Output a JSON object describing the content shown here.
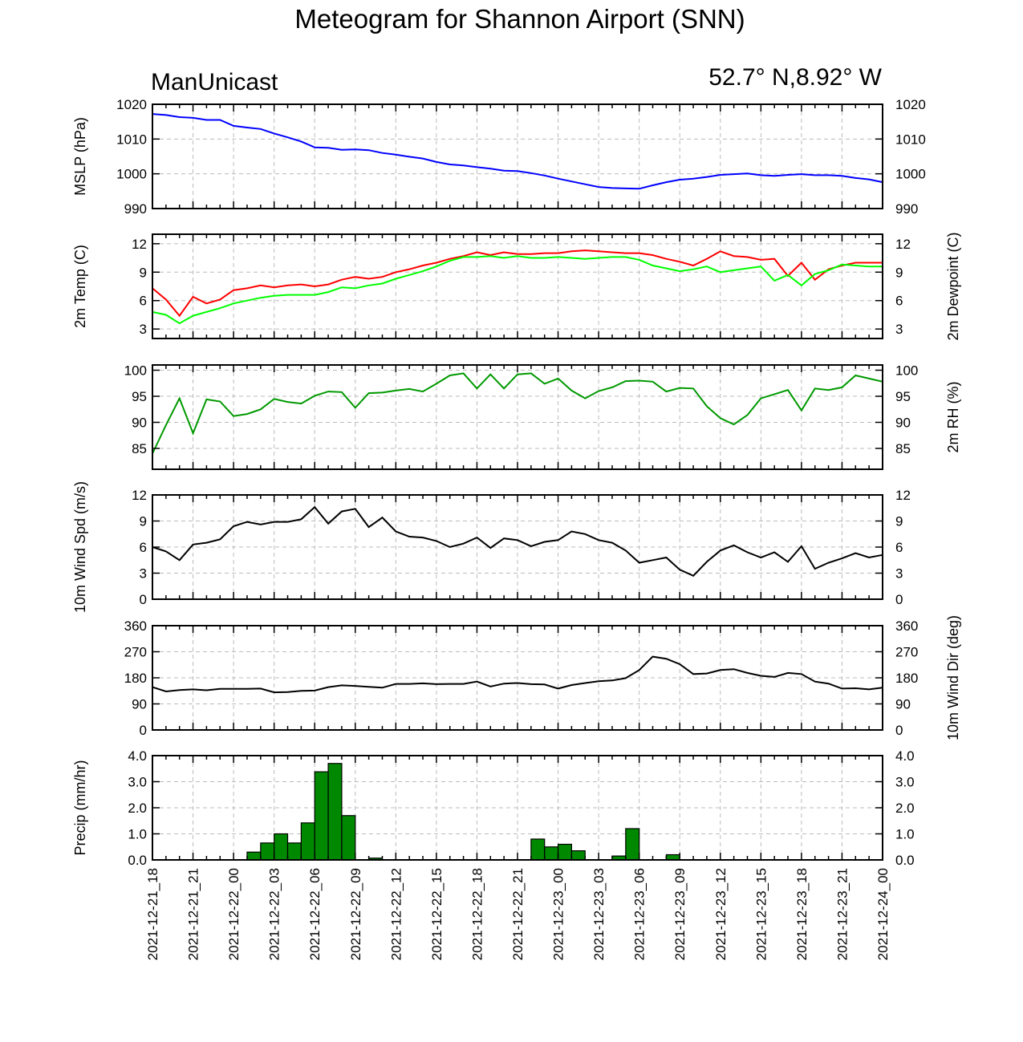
{
  "title": "Meteogram for Shannon Airport (SNN)",
  "subtitle_left": "ManUnicast",
  "subtitle_right": "52.7° N,8.92° W",
  "chart_data": [
    {
      "type": "line",
      "ylabel_left": "MSLP (hPa)",
      "ylabel_right": "",
      "ylim": [
        990,
        1020
      ],
      "yticks": [
        "990",
        "1000",
        "1010",
        "1020"
      ],
      "ytick_values": [
        990,
        1000,
        1010,
        1020
      ],
      "grid": true,
      "series": [
        {
          "color": "#0000ff",
          "values": [
            1017.2,
            1016.9,
            1016.3,
            1016.1,
            1015.5,
            1015.5,
            1013.8,
            1013.3,
            1012.9,
            1011.6,
            1010.5,
            1009.3,
            1007.6,
            1007.5,
            1006.9,
            1007.0,
            1006.8,
            1006.0,
            1005.5,
            1004.9,
            1004.4,
            1003.4,
            1002.7,
            1002.4,
            1001.9,
            1001.5,
            1000.9,
            1000.8,
            1000.2,
            999.5,
            998.6,
            997.8,
            997.0,
            996.2,
            995.9,
            995.8,
            995.7,
            996.7,
            997.6,
            998.3,
            998.6,
            999.1,
            999.7,
            999.9,
            1000.1,
            999.6,
            999.4,
            999.7,
            999.9,
            999.6,
            999.6,
            999.4,
            998.8,
            998.4,
            997.6
          ]
        }
      ]
    },
    {
      "type": "line",
      "ylabel_left": "2m Temp (C)",
      "ylabel_right": "2m Dewpoint (C)",
      "ylim": [
        2,
        13
      ],
      "yticks": [
        "3",
        "6",
        "9",
        "12"
      ],
      "ytick_values": [
        3,
        6,
        9,
        12
      ],
      "grid": true,
      "series": [
        {
          "color": "#ff0000",
          "values": [
            7.3,
            6.1,
            4.4,
            6.4,
            5.7,
            6.1,
            7.1,
            7.3,
            7.6,
            7.4,
            7.6,
            7.7,
            7.5,
            7.7,
            8.2,
            8.5,
            8.3,
            8.5,
            9.0,
            9.3,
            9.7,
            10.0,
            10.4,
            10.7,
            11.1,
            10.8,
            11.1,
            10.9,
            10.9,
            11.0,
            11.0,
            11.2,
            11.3,
            11.2,
            11.1,
            11.0,
            11.0,
            10.8,
            10.4,
            10.1,
            9.7,
            10.4,
            11.2,
            10.7,
            10.6,
            10.3,
            10.4,
            8.6,
            10.0,
            8.2,
            9.3,
            9.7,
            10.0,
            10.0,
            10.0
          ]
        },
        {
          "color": "#00ff00",
          "values": [
            4.8,
            4.5,
            3.6,
            4.4,
            4.8,
            5.2,
            5.7,
            6.0,
            6.3,
            6.5,
            6.6,
            6.6,
            6.6,
            6.9,
            7.4,
            7.3,
            7.6,
            7.8,
            8.3,
            8.7,
            9.1,
            9.6,
            10.2,
            10.6,
            10.6,
            10.7,
            10.5,
            10.7,
            10.5,
            10.5,
            10.6,
            10.5,
            10.4,
            10.5,
            10.6,
            10.6,
            10.3,
            9.7,
            9.4,
            9.1,
            9.3,
            9.6,
            9.0,
            9.2,
            9.4,
            9.6,
            8.1,
            8.7,
            7.6,
            8.8,
            9.2,
            9.8,
            9.7,
            9.6,
            9.6
          ]
        }
      ]
    },
    {
      "type": "line",
      "ylabel_left": "",
      "ylabel_right": "2m RH (%)",
      "ylim": [
        81,
        101
      ],
      "yticks": [
        "85",
        "90",
        "95",
        "100"
      ],
      "ytick_values": [
        85,
        90,
        95,
        100
      ],
      "grid": true,
      "series": [
        {
          "color": "#009900",
          "values": [
            84.0,
            89.5,
            94.6,
            87.9,
            94.4,
            94.0,
            91.2,
            91.6,
            92.5,
            94.5,
            93.9,
            93.6,
            95.1,
            95.9,
            95.8,
            92.8,
            95.6,
            95.7,
            96.1,
            96.4,
            95.9,
            97.4,
            99.0,
            99.4,
            96.5,
            99.2,
            96.5,
            99.2,
            99.4,
            97.4,
            98.4,
            96.1,
            94.6,
            96.0,
            96.7,
            97.9,
            98.0,
            97.8,
            95.9,
            96.6,
            96.5,
            93.1,
            90.8,
            89.6,
            91.4,
            94.6,
            95.4,
            96.2,
            92.3,
            96.5,
            96.2,
            96.7,
            99.0,
            98.4,
            97.8
          ]
        }
      ]
    },
    {
      "type": "line",
      "ylabel_left": "10m Wind Spd (m/s)",
      "ylabel_right": "",
      "ylim": [
        0,
        12
      ],
      "yticks": [
        "0",
        "3",
        "6",
        "9",
        "12"
      ],
      "ytick_values": [
        0,
        3,
        6,
        9,
        12
      ],
      "grid": true,
      "series": [
        {
          "color": "#000000",
          "values": [
            6.0,
            5.5,
            4.5,
            6.3,
            6.5,
            6.9,
            8.4,
            8.9,
            8.6,
            8.9,
            8.9,
            9.2,
            10.6,
            8.7,
            10.1,
            10.4,
            8.3,
            9.4,
            7.8,
            7.2,
            7.1,
            6.7,
            6.0,
            6.4,
            7.1,
            5.9,
            7.0,
            6.8,
            6.1,
            6.6,
            6.8,
            7.8,
            7.5,
            6.8,
            6.5,
            5.6,
            4.2,
            4.5,
            4.8,
            3.4,
            2.7,
            4.3,
            5.6,
            6.2,
            5.4,
            4.8,
            5.4,
            4.3,
            6.1,
            3.5,
            4.2,
            4.7,
            5.3,
            4.8,
            5.1
          ]
        }
      ]
    },
    {
      "type": "line",
      "ylabel_left": "",
      "ylabel_right": "10m Wind Dir (deg)",
      "ylim": [
        0,
        360
      ],
      "yticks": [
        "0",
        "90",
        "180",
        "270",
        "360"
      ],
      "ytick_values": [
        0,
        90,
        180,
        270,
        360
      ],
      "grid": true,
      "series": [
        {
          "color": "#000000",
          "values": [
            148,
            133,
            138,
            140,
            137,
            142,
            142,
            142,
            143,
            130,
            131,
            135,
            136,
            148,
            154,
            152,
            149,
            146,
            159,
            159,
            161,
            158,
            159,
            159,
            167,
            150,
            160,
            162,
            158,
            157,
            143,
            155,
            162,
            168,
            171,
            179,
            207,
            253,
            246,
            227,
            193,
            195,
            207,
            210,
            197,
            187,
            183,
            197,
            193,
            167,
            160,
            143,
            144,
            140,
            146
          ]
        }
      ]
    },
    {
      "type": "bar",
      "ylabel_left": "Precip (mm/hr)",
      "ylabel_right": "",
      "ylim": [
        0,
        4
      ],
      "yticks": [
        "0.0",
        "1.0",
        "2.0",
        "3.0",
        "4.0"
      ],
      "ytick_values": [
        0,
        1,
        2,
        3,
        4
      ],
      "grid": true,
      "color": "#008800",
      "values": [
        0,
        0,
        0,
        0,
        0,
        0,
        0,
        0.3,
        0.65,
        1.0,
        0.65,
        1.42,
        3.38,
        3.7,
        1.7,
        0,
        0.07,
        0,
        0,
        0,
        0,
        0,
        0,
        0,
        0,
        0,
        0,
        0,
        0.8,
        0.5,
        0.6,
        0.35,
        0,
        0,
        0.15,
        1.2,
        0,
        0,
        0.2,
        0,
        0,
        0,
        0,
        0,
        0,
        0,
        0,
        0,
        0,
        0,
        0,
        0,
        0,
        0
      ]
    }
  ],
  "x_tick_labels": [
    "2021-12-21_18",
    "2021-12-21_21",
    "2021-12-22_00",
    "2021-12-22_03",
    "2021-12-22_06",
    "2021-12-22_09",
    "2021-12-22_12",
    "2021-12-22_15",
    "2021-12-22_18",
    "2021-12-22_21",
    "2021-12-23_00",
    "2021-12-23_03",
    "2021-12-23_06",
    "2021-12-23_09",
    "2021-12-23_12",
    "2021-12-23_15",
    "2021-12-23_18",
    "2021-12-23_21",
    "2021-12-24_00"
  ]
}
